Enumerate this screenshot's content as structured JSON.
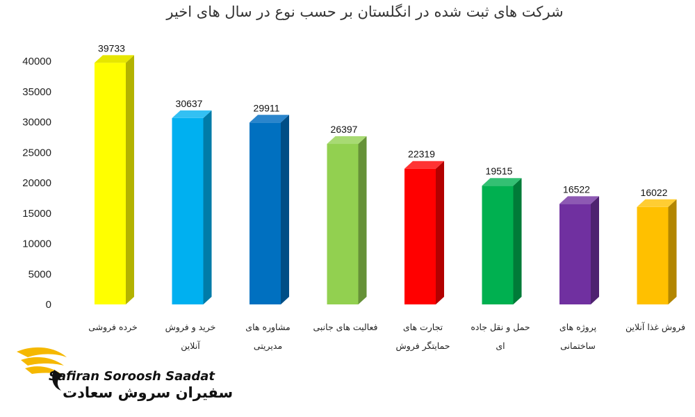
{
  "chart_data": {
    "type": "bar",
    "title": "شرکت های ثبت شده در انگلستان بر حسب نوع در سال های اخیر",
    "xlabel": "",
    "ylabel": "",
    "ylim": [
      0,
      40000
    ],
    "yticks": [
      0,
      5000,
      10000,
      15000,
      20000,
      25000,
      30000,
      35000,
      40000
    ],
    "grid": false,
    "legend": "none",
    "categories": [
      [
        "خرده فروشی"
      ],
      [
        "خرید و فروش",
        "آنلاین"
      ],
      [
        "مشاوره های",
        "مدیریتی"
      ],
      [
        "فعالیت های جانبی"
      ],
      [
        "تجارت های",
        "حمایتگر فروش"
      ],
      [
        "حمل و نقل جاده",
        "ای"
      ],
      [
        "پروژه های",
        "ساختمانی"
      ],
      [
        "فروش غذا آنلاین"
      ]
    ],
    "values": [
      39733,
      30637,
      29911,
      26397,
      22319,
      19515,
      16522,
      16022
    ],
    "colors": [
      {
        "front": "#ffff00",
        "side": "#b3b300",
        "top": "#e6e600"
      },
      {
        "front": "#00b0f0",
        "side": "#007ba8",
        "top": "#33c0f3"
      },
      {
        "front": "#0070c0",
        "side": "#004e86",
        "top": "#2a85cc"
      },
      {
        "front": "#92d050",
        "side": "#669238",
        "top": "#a8da73"
      },
      {
        "front": "#ff0000",
        "side": "#b30000",
        "top": "#ff3333"
      },
      {
        "front": "#00b050",
        "side": "#007b38",
        "top": "#33c073"
      },
      {
        "front": "#7030a0",
        "side": "#4e2270",
        "top": "#8d59b3"
      },
      {
        "front": "#ffc000",
        "side": "#b38600",
        "top": "#ffcd33"
      }
    ]
  },
  "logo": {
    "name_en": "Safiran Soroosh Saadat",
    "name_fa": "سفیران سروش سعادت",
    "accent": "#f5b800"
  }
}
